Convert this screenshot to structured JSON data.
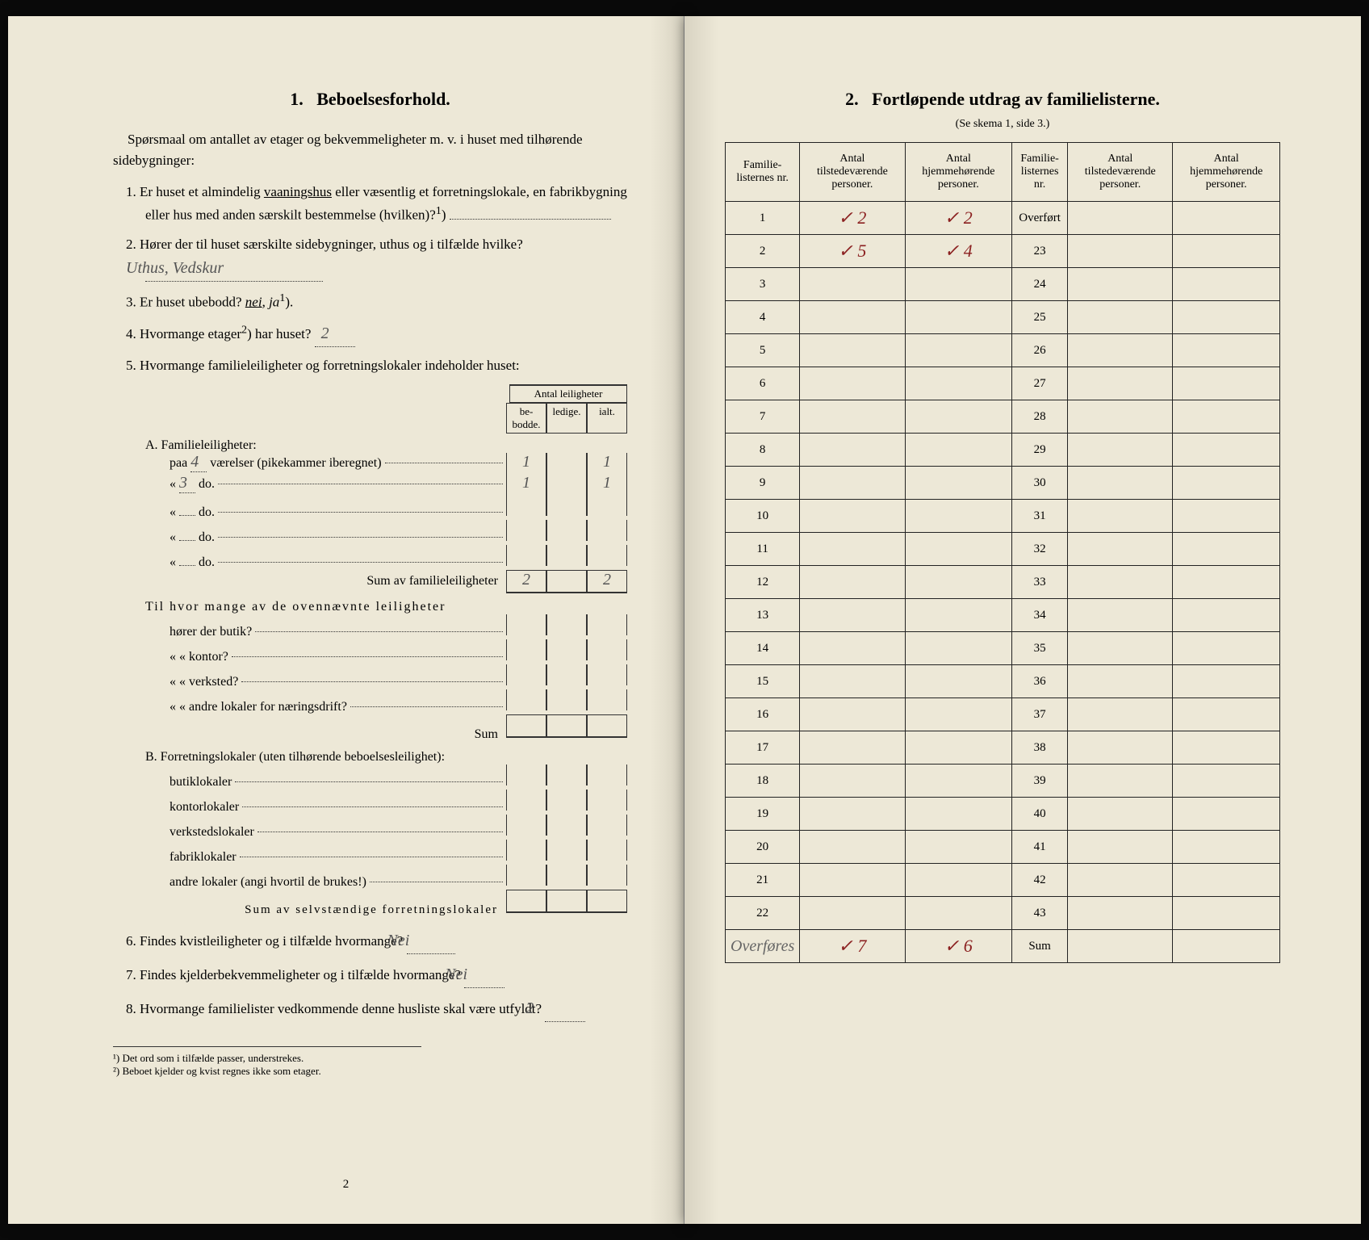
{
  "left": {
    "section_num": "1.",
    "section_title": "Beboelsesforhold.",
    "intro": "Spørsmaal om antallet av etager og bekvemmeligheter m. v. i huset med tilhørende sidebygninger:",
    "q1": {
      "num": "1.",
      "text_a": "Er huset et almindelig ",
      "underlined": "vaaningshus",
      "text_b": " eller væsentlig et forretningslokale, en fabrikbygning eller hus med anden særskilt bestemmelse (hvilken)?",
      "sup": "1",
      "paren": ")"
    },
    "q2": {
      "num": "2.",
      "text": "Hører der til huset særskilte sidebygninger, uthus og i tilfælde hvilke?",
      "answer": "Uthus, Vedskur"
    },
    "q3": {
      "num": "3.",
      "text_a": "Er huset ubebodd? ",
      "nei": "nei",
      "comma": ", ",
      "ja": "ja",
      "sup": "1",
      "paren": ")."
    },
    "q4": {
      "num": "4.",
      "text": "Hvormange etager",
      "sup": "2",
      "text_b": ") har huset?",
      "answer": "2"
    },
    "q5": {
      "num": "5.",
      "text": "Hvormange familieleiligheter og forretningslokaler indeholder huset:"
    },
    "table_header": {
      "main": "Antal leiligheter",
      "col1": "be-\nbodde.",
      "col2": "ledige.",
      "col3": "ialt."
    },
    "sectionA": {
      "title": "A. Familieleiligheter:",
      "rows": [
        {
          "label_a": "paa ",
          "hw": "4",
          "label_b": " værelser (pikekammer iberegnet)",
          "c1": "1",
          "c2": "",
          "c3": "1"
        },
        {
          "label_a": "« ",
          "hw": "3",
          "label_b": " do.",
          "c1": "1",
          "c2": "",
          "c3": "1"
        },
        {
          "label_a": "« ",
          "hw": "",
          "label_b": " do.",
          "c1": "",
          "c2": "",
          "c3": ""
        },
        {
          "label_a": "« ",
          "hw": "",
          "label_b": " do.",
          "c1": "",
          "c2": "",
          "c3": ""
        },
        {
          "label_a": "« ",
          "hw": "",
          "label_b": " do.",
          "c1": "",
          "c2": "",
          "c3": ""
        }
      ],
      "sum_label": "Sum av familieleiligheter",
      "sum": {
        "c1": "2",
        "c2": "",
        "c3": "2"
      },
      "extra_label": "Til hvor mange av de ovennævnte leiligheter",
      "extra_rows": [
        {
          "label": "hører der butik?"
        },
        {
          "label": "«   « kontor?"
        },
        {
          "label": "«   « verksted?"
        },
        {
          "label": "«   « andre lokaler for næringsdrift?"
        }
      ],
      "sum2_label": "Sum"
    },
    "sectionB": {
      "title": "B. Forretningslokaler (uten tilhørende beboelsesleilighet):",
      "rows": [
        {
          "label": "butiklokaler"
        },
        {
          "label": "kontorlokaler"
        },
        {
          "label": "verkstedslokaler"
        },
        {
          "label": "fabriklokaler"
        },
        {
          "label": "andre lokaler (angi hvortil de brukes!)"
        }
      ],
      "sum_label": "Sum av selvstændige forretningslokaler"
    },
    "q6": {
      "num": "6.",
      "text": "Findes kvistleiligheter og i tilfælde hvormange?",
      "answer": "Nei"
    },
    "q7": {
      "num": "7.",
      "text": "Findes kjelderbekvemmeligheter og i tilfælde hvormange?",
      "answer": "Nei"
    },
    "q8": {
      "num": "8.",
      "text": "Hvormange familielister vedkommende denne husliste skal være utfyldt?",
      "answer": "2"
    },
    "footnote1": "¹) Det ord som i tilfælde passer, understrekes.",
    "footnote2": "²) Beboet kjelder og kvist regnes ikke som etager.",
    "page_num": "2"
  },
  "right": {
    "section_num": "2.",
    "section_title": "Fortløpende utdrag av familielisterne.",
    "subtitle": "(Se skema 1, side 3.)",
    "headers": {
      "h1": "Familie-\nlisternes\nnr.",
      "h2": "Antal\ntilstedeværende\npersoner.",
      "h3": "Antal\nhjemmehørende\npersoner.",
      "h4": "Familie-\nlisternes\nnr.",
      "h5": "Antal\ntilstedeværende\npersoner.",
      "h6": "Antal\nhjemmehørende\npersoner."
    },
    "overfort": "Overført",
    "rows_left": [
      {
        "nr": "1",
        "c1": "✓  2",
        "c2": "✓  2"
      },
      {
        "nr": "2",
        "c1": "✓  5",
        "c2": "✓  4"
      },
      {
        "nr": "3",
        "c1": "",
        "c2": ""
      },
      {
        "nr": "4",
        "c1": "",
        "c2": ""
      },
      {
        "nr": "5",
        "c1": "",
        "c2": ""
      },
      {
        "nr": "6",
        "c1": "",
        "c2": ""
      },
      {
        "nr": "7",
        "c1": "",
        "c2": ""
      },
      {
        "nr": "8",
        "c1": "",
        "c2": ""
      },
      {
        "nr": "9",
        "c1": "",
        "c2": ""
      },
      {
        "nr": "10",
        "c1": "",
        "c2": ""
      },
      {
        "nr": "11",
        "c1": "",
        "c2": ""
      },
      {
        "nr": "12",
        "c1": "",
        "c2": ""
      },
      {
        "nr": "13",
        "c1": "",
        "c2": ""
      },
      {
        "nr": "14",
        "c1": "",
        "c2": ""
      },
      {
        "nr": "15",
        "c1": "",
        "c2": ""
      },
      {
        "nr": "16",
        "c1": "",
        "c2": ""
      },
      {
        "nr": "17",
        "c1": "",
        "c2": ""
      },
      {
        "nr": "18",
        "c1": "",
        "c2": ""
      },
      {
        "nr": "19",
        "c1": "",
        "c2": ""
      },
      {
        "nr": "20",
        "c1": "",
        "c2": ""
      },
      {
        "nr": "21",
        "c1": "",
        "c2": ""
      },
      {
        "nr": "22",
        "c1": "",
        "c2": ""
      }
    ],
    "rows_right_nrs": [
      "23",
      "24",
      "25",
      "26",
      "27",
      "28",
      "29",
      "30",
      "31",
      "32",
      "33",
      "34",
      "35",
      "36",
      "37",
      "38",
      "39",
      "40",
      "41",
      "42",
      "43"
    ],
    "overfores_label": "Overføres",
    "overfores": {
      "c1": "✓  7",
      "c2": "✓  6"
    },
    "sum_label": "Sum"
  }
}
